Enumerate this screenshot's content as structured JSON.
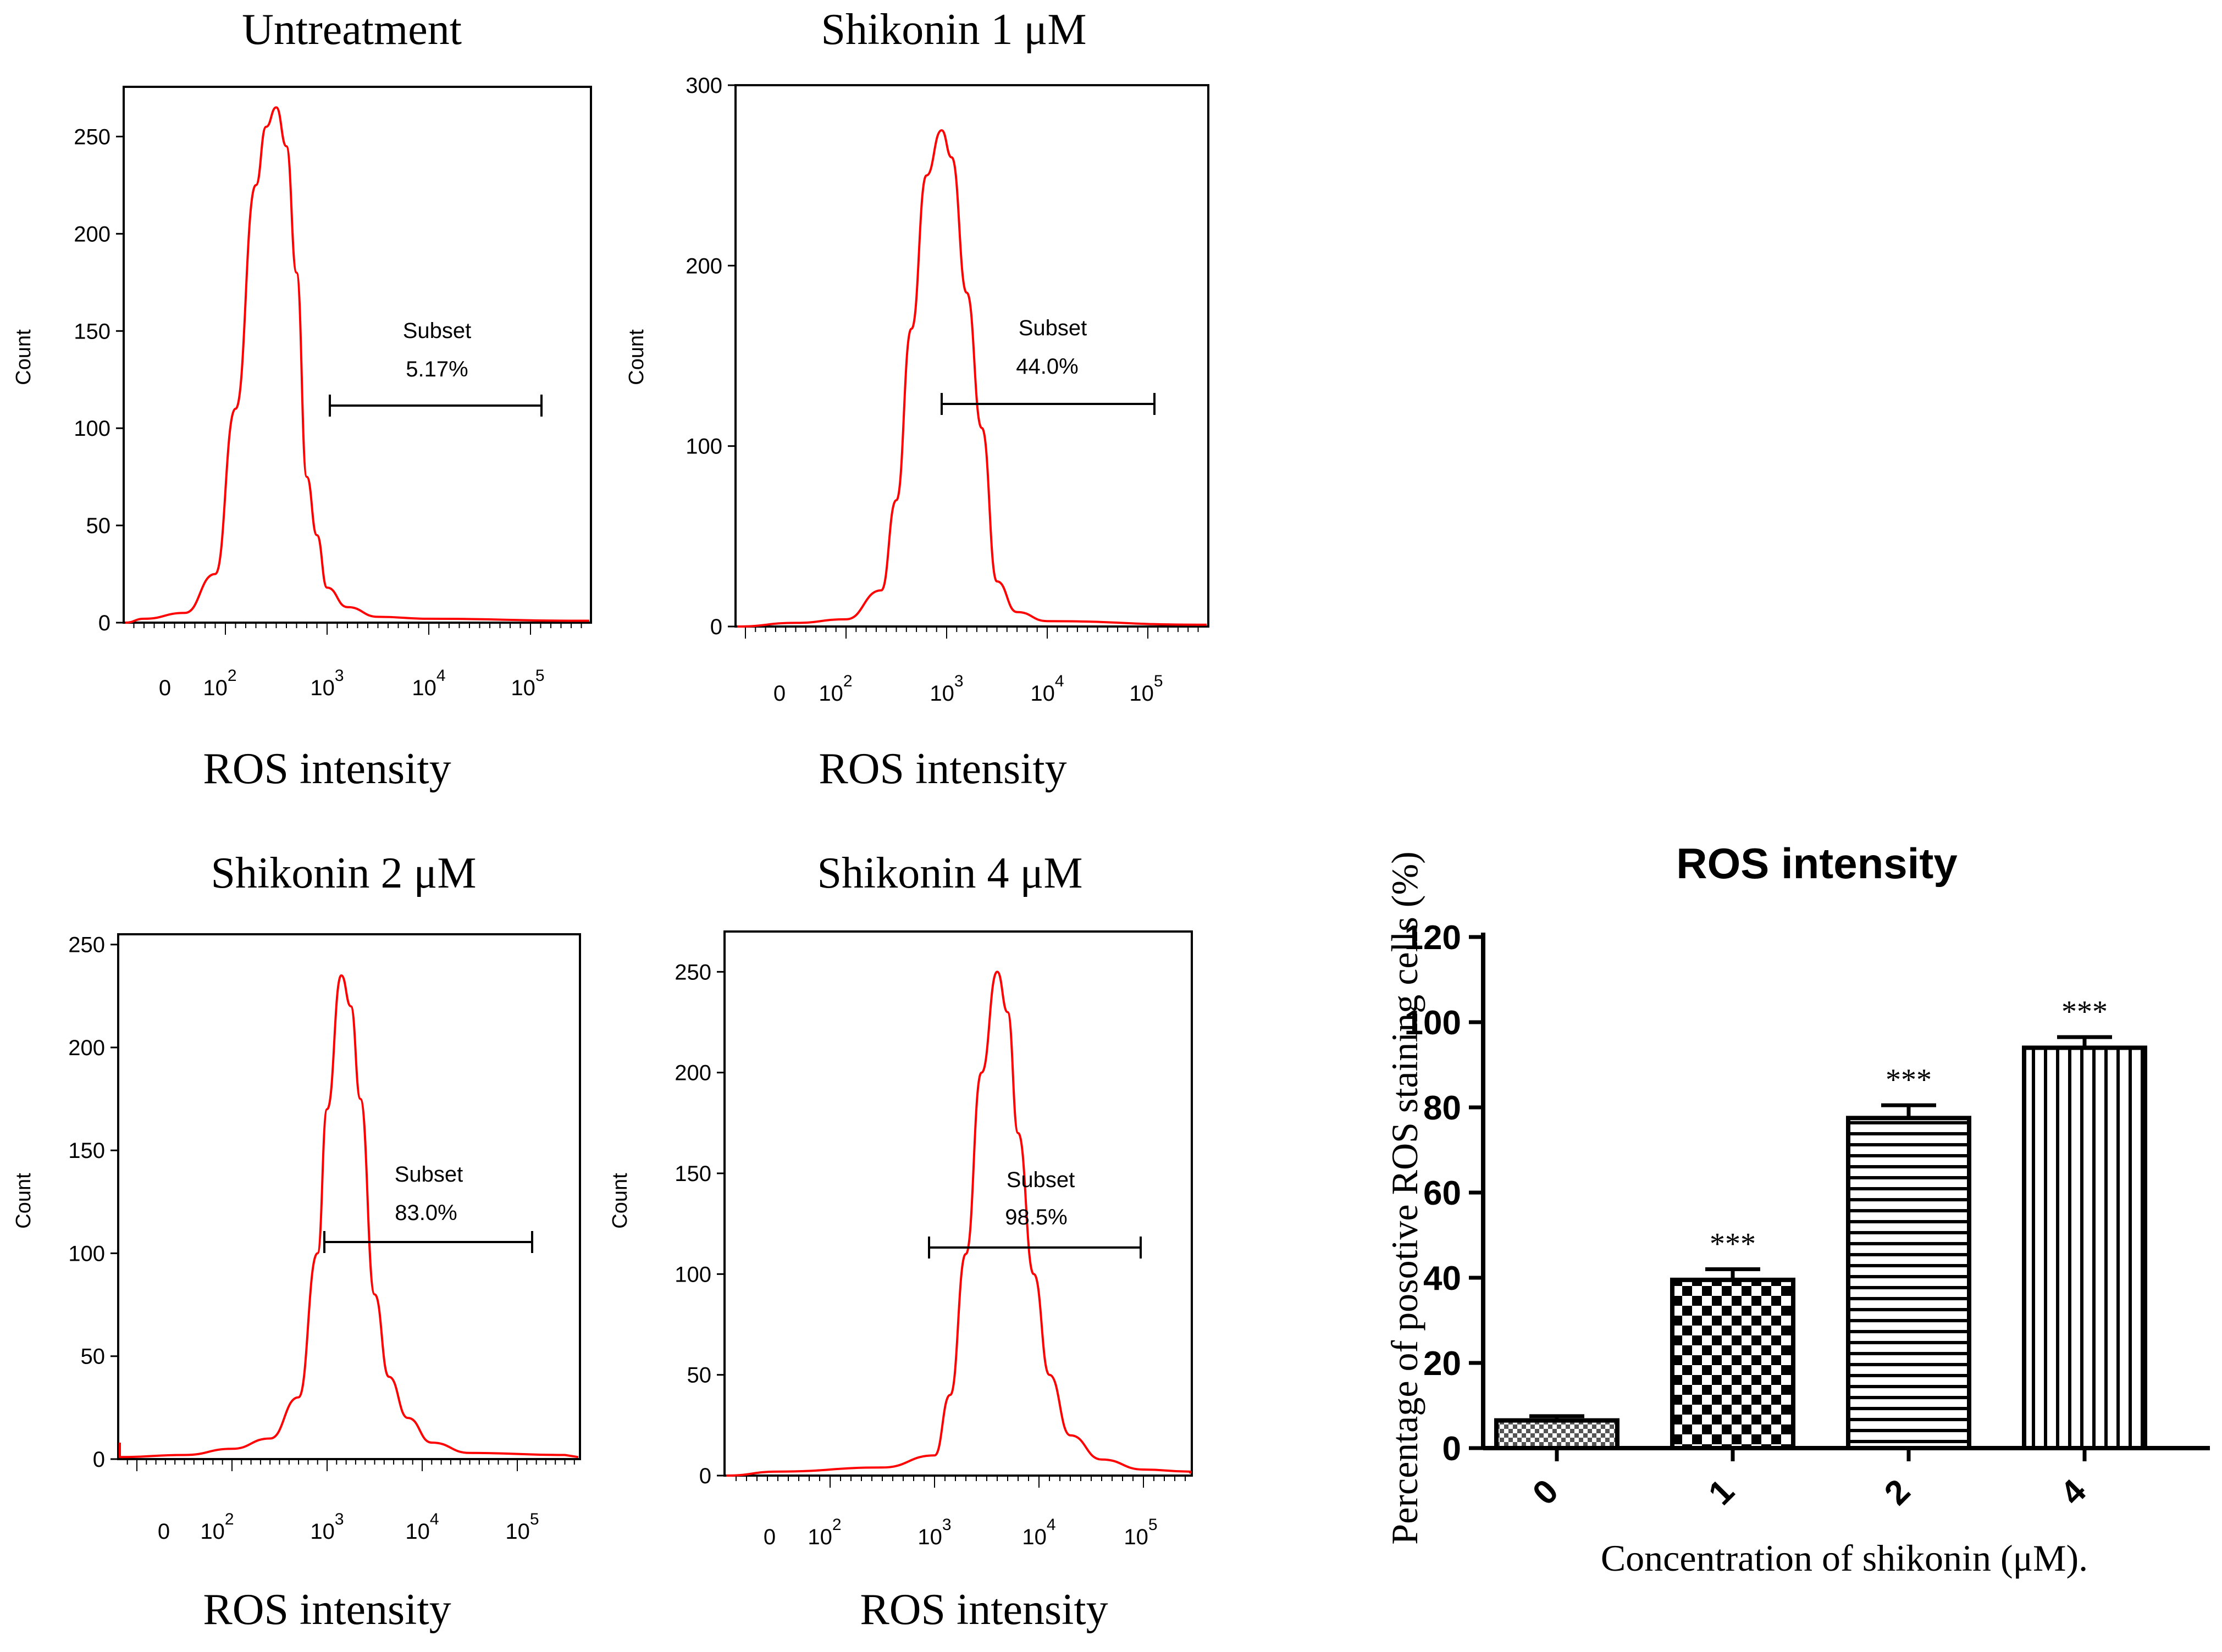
{
  "chart_data": [
    {
      "type": "histogram",
      "title": "Untreatment",
      "xlabel": "ROS intensity",
      "ylabel": "Count",
      "x_scale": "log",
      "xticks": [
        "0",
        "10^2",
        "10^3",
        "10^4",
        "10^5"
      ],
      "yticks": [
        0,
        50,
        100,
        150,
        200,
        250
      ],
      "ylim": [
        0,
        275
      ],
      "gate": {
        "label": "Subset",
        "percent": "5.17%",
        "range_log10": [
          3.0,
          5.2
        ]
      },
      "peak_log10": 2.5,
      "peak_count": 265,
      "line_color": "#ff0000",
      "curve_log10": [
        [
          0.6,
          0
        ],
        [
          1.2,
          2
        ],
        [
          1.6,
          5
        ],
        [
          1.9,
          25
        ],
        [
          2.1,
          110
        ],
        [
          2.3,
          225
        ],
        [
          2.4,
          255
        ],
        [
          2.5,
          265
        ],
        [
          2.6,
          245
        ],
        [
          2.7,
          180
        ],
        [
          2.8,
          75
        ],
        [
          2.9,
          45
        ],
        [
          3.0,
          18
        ],
        [
          3.2,
          8
        ],
        [
          3.5,
          3
        ],
        [
          4.0,
          2
        ],
        [
          5.5,
          1
        ]
      ]
    },
    {
      "type": "histogram",
      "title": "Shikonin 1 μM",
      "xlabel": "ROS intensity",
      "ylabel": "Count",
      "x_scale": "log",
      "xticks": [
        "0",
        "10^2",
        "10^3",
        "10^4",
        "10^5"
      ],
      "yticks": [
        0,
        100,
        200,
        300
      ],
      "ylim": [
        0,
        300
      ],
      "gate": {
        "label": "Subset",
        "percent": "44.0%",
        "range_log10": [
          3.0,
          5.2
        ]
      },
      "peak_log10": 2.95,
      "peak_count": 275,
      "line_color": "#ff0000",
      "curve_log10": [
        [
          0.6,
          0
        ],
        [
          1.5,
          2
        ],
        [
          2.0,
          4
        ],
        [
          2.35,
          20
        ],
        [
          2.5,
          70
        ],
        [
          2.65,
          165
        ],
        [
          2.8,
          250
        ],
        [
          2.95,
          275
        ],
        [
          3.05,
          260
        ],
        [
          3.2,
          185
        ],
        [
          3.35,
          110
        ],
        [
          3.5,
          25
        ],
        [
          3.7,
          8
        ],
        [
          4.0,
          3
        ],
        [
          5.5,
          1
        ]
      ]
    },
    {
      "type": "histogram",
      "title": "Shikonin 2 μM",
      "xlabel": "ROS intensity",
      "ylabel": "Count",
      "x_scale": "log",
      "xticks": [
        "0",
        "10^2",
        "10^3",
        "10^4",
        "10^5"
      ],
      "yticks": [
        0,
        50,
        100,
        150,
        200,
        250
      ],
      "ylim": [
        0,
        255
      ],
      "gate": {
        "label": "Subset",
        "percent": "83.0%",
        "range_log10": [
          3.0,
          5.0
        ]
      },
      "peak_log10": 3.15,
      "peak_count": 235,
      "line_color": "#ff0000",
      "curve_log10": [
        [
          -0.5,
          8
        ],
        [
          -0.3,
          2
        ],
        [
          0.5,
          1
        ],
        [
          1.5,
          2
        ],
        [
          2.0,
          5
        ],
        [
          2.4,
          10
        ],
        [
          2.7,
          30
        ],
        [
          2.9,
          100
        ],
        [
          3.0,
          170
        ],
        [
          3.15,
          235
        ],
        [
          3.25,
          220
        ],
        [
          3.35,
          175
        ],
        [
          3.5,
          80
        ],
        [
          3.65,
          40
        ],
        [
          3.85,
          20
        ],
        [
          4.1,
          8
        ],
        [
          4.5,
          3
        ],
        [
          5.5,
          2
        ]
      ]
    },
    {
      "type": "histogram",
      "title": "Shikonin 4 μM",
      "xlabel": "ROS intensity",
      "ylabel": "Count",
      "x_scale": "log",
      "xticks": [
        "0",
        "10^2",
        "10^3",
        "10^4",
        "10^5"
      ],
      "yticks": [
        0,
        50,
        100,
        150,
        200,
        250
      ],
      "ylim": [
        0,
        270
      ],
      "gate": {
        "label": "Subset",
        "percent": "98.5%",
        "range_log10": [
          3.0,
          5.2
        ]
      },
      "peak_log10": 3.6,
      "peak_count": 250,
      "line_color": "#ff0000",
      "curve_log10": [
        [
          0.3,
          0
        ],
        [
          1.5,
          2
        ],
        [
          2.5,
          4
        ],
        [
          3.0,
          10
        ],
        [
          3.15,
          40
        ],
        [
          3.3,
          110
        ],
        [
          3.45,
          200
        ],
        [
          3.6,
          250
        ],
        [
          3.7,
          230
        ],
        [
          3.8,
          170
        ],
        [
          3.95,
          100
        ],
        [
          4.1,
          50
        ],
        [
          4.3,
          20
        ],
        [
          4.6,
          8
        ],
        [
          5.0,
          3
        ],
        [
          5.5,
          2
        ]
      ]
    },
    {
      "type": "bar",
      "title": "ROS intensity",
      "xlabel": "Concentration of shikonin (μM).",
      "ylabel": "Percentage of posotive ROS staining cells (%)",
      "categories": [
        "0",
        "1",
        "2",
        "4"
      ],
      "values": [
        6.5,
        39.5,
        77.5,
        94.0
      ],
      "errors": [
        1.0,
        2.5,
        3.0,
        2.5
      ],
      "significance": [
        "",
        "***",
        "***",
        "***"
      ],
      "patterns": [
        "small-checker",
        "large-checker",
        "horizontal-lines",
        "vertical-lines"
      ],
      "yticks": [
        0,
        20,
        40,
        60,
        80,
        100,
        120
      ],
      "ylim": [
        0,
        120
      ]
    }
  ]
}
